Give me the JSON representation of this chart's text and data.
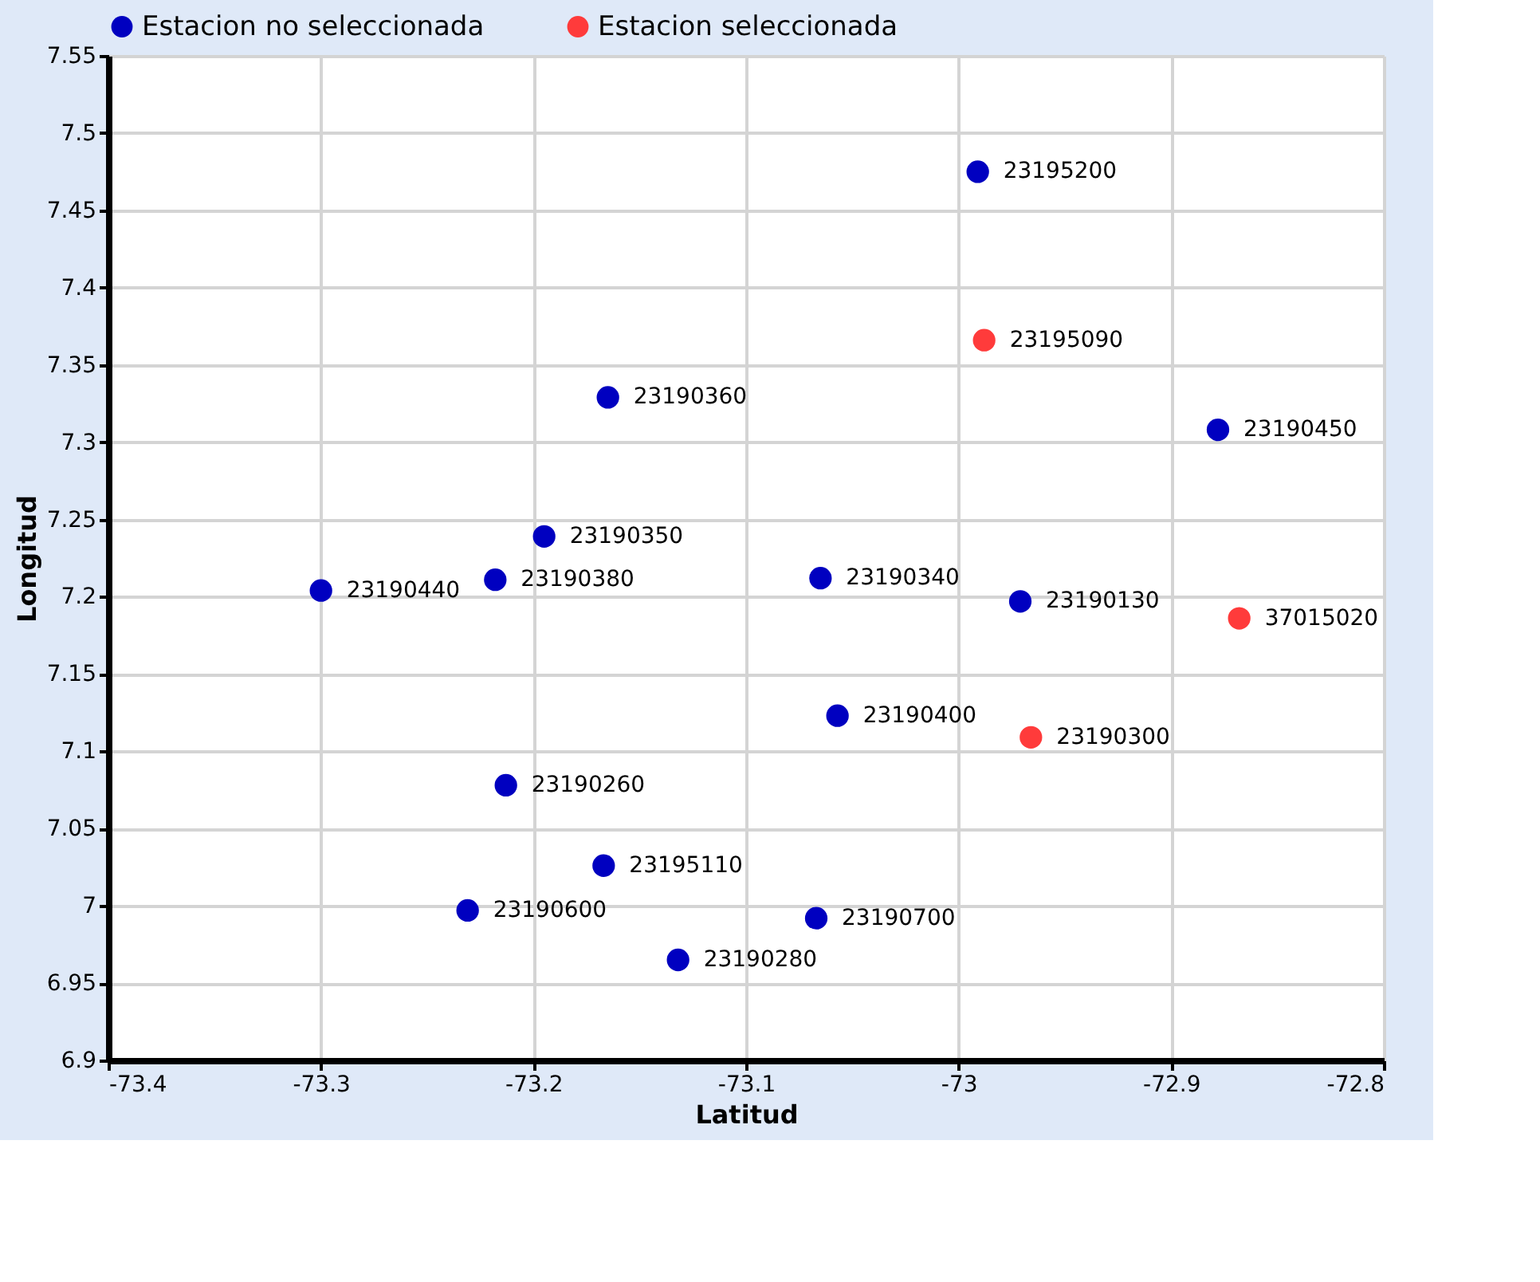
{
  "chart_data": {
    "type": "scatter",
    "xlabel": "Latitud",
    "ylabel": "Longitud",
    "xlim": [
      -73.4,
      -72.8
    ],
    "xticks": [
      -73.4,
      -73.3,
      -73.2,
      -73.1,
      -73,
      -72.9,
      -72.8
    ],
    "ylim": [
      6.9,
      7.55
    ],
    "yticks": [
      6.9,
      6.95,
      7,
      7.05,
      7.1,
      7.15,
      7.2,
      7.25,
      7.3,
      7.35,
      7.4,
      7.45,
      7.5,
      7.55
    ],
    "grid": true,
    "legend": "top",
    "marker": "circle",
    "series": [
      {
        "name": "Estacion no seleccionada",
        "color": "#0000c0",
        "x": [
          -72.991,
          -73.165,
          -72.878,
          -73.195,
          -73.218,
          -73.3,
          -73.065,
          -72.971,
          -73.057,
          -73.213,
          -73.167,
          -73.231,
          -73.067,
          -73.132
        ],
        "values": [
          7.475,
          7.329,
          7.308,
          7.239,
          7.211,
          7.204,
          7.212,
          7.197,
          7.123,
          7.078,
          7.026,
          6.997,
          6.992,
          6.965
        ]
      },
      {
        "name": "Estacion seleccionada",
        "color": "#ff3b3b",
        "x": [
          -72.988,
          -72.868,
          -72.966
        ],
        "values": [
          7.366,
          7.186,
          7.109
        ]
      }
    ],
    "annotations": [
      {
        "text": "23195200",
        "x": -72.991,
        "y": 7.475
      },
      {
        "text": "23190360",
        "x": -73.165,
        "y": 7.329
      },
      {
        "text": "23190450",
        "x": -72.878,
        "y": 7.308
      },
      {
        "text": "23190350",
        "x": -73.195,
        "y": 7.239
      },
      {
        "text": "23190380",
        "x": -73.218,
        "y": 7.211
      },
      {
        "text": "23190440",
        "x": -73.3,
        "y": 7.204
      },
      {
        "text": "23190340",
        "x": -73.065,
        "y": 7.212
      },
      {
        "text": "23190130",
        "x": -72.971,
        "y": 7.197
      },
      {
        "text": "23190400",
        "x": -73.057,
        "y": 7.123
      },
      {
        "text": "23190260",
        "x": -73.213,
        "y": 7.078
      },
      {
        "text": "23195110",
        "x": -73.167,
        "y": 7.026
      },
      {
        "text": "23190600",
        "x": -73.231,
        "y": 6.997
      },
      {
        "text": "23190700",
        "x": -73.067,
        "y": 6.992
      },
      {
        "text": "23190280",
        "x": -73.132,
        "y": 6.965
      },
      {
        "text": "23195090",
        "x": -72.988,
        "y": 7.366
      },
      {
        "text": "37015020",
        "x": -72.868,
        "y": 7.186
      },
      {
        "text": "23190300",
        "x": -72.966,
        "y": 7.109
      }
    ]
  }
}
